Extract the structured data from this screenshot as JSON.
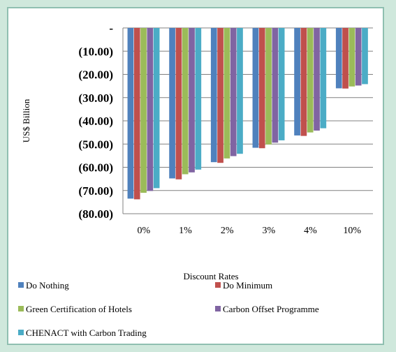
{
  "chart_data": {
    "type": "bar",
    "title": "",
    "xlabel": "Discount Rates",
    "ylabel": "US$ Billion",
    "categories": [
      "0%",
      "1%",
      "2%",
      "3%",
      "4%",
      "10%"
    ],
    "ylim": [
      -80,
      0
    ],
    "yticks": [
      0,
      -10,
      -20,
      -30,
      -40,
      -50,
      -60,
      -70,
      -80
    ],
    "ytick_labels": [
      "-",
      "(10.00)",
      "(20.00)",
      "(30.00)",
      "(40.00)",
      "(50.00)",
      "(60.00)",
      "(70.00)",
      "(80.00)"
    ],
    "grid": true,
    "legend": "bottom",
    "series": [
      {
        "name": "Do Nothing",
        "color": "#4f81bd",
        "values": [
          -73.5,
          -64.8,
          -57.8,
          -51.6,
          -46.3,
          -26.0
        ]
      },
      {
        "name": "Do Minimum",
        "color": "#c0504d",
        "values": [
          -73.8,
          -65.2,
          -58.1,
          -51.8,
          -46.5,
          -26.1
        ]
      },
      {
        "name": "Green Certification of Hotels",
        "color": "#9bbb59",
        "values": [
          -71.0,
          -63.0,
          -56.2,
          -50.2,
          -45.0,
          -25.2
        ]
      },
      {
        "name": "Carbon Offset Programme",
        "color": "#8064a2",
        "values": [
          -70.2,
          -62.2,
          -55.2,
          -49.4,
          -44.2,
          -24.8
        ]
      },
      {
        "name": "CHENACT with Carbon Trading",
        "color": "#4bacc6",
        "values": [
          -69.0,
          -61.0,
          -54.2,
          -48.4,
          -43.2,
          -24.2
        ]
      }
    ]
  }
}
